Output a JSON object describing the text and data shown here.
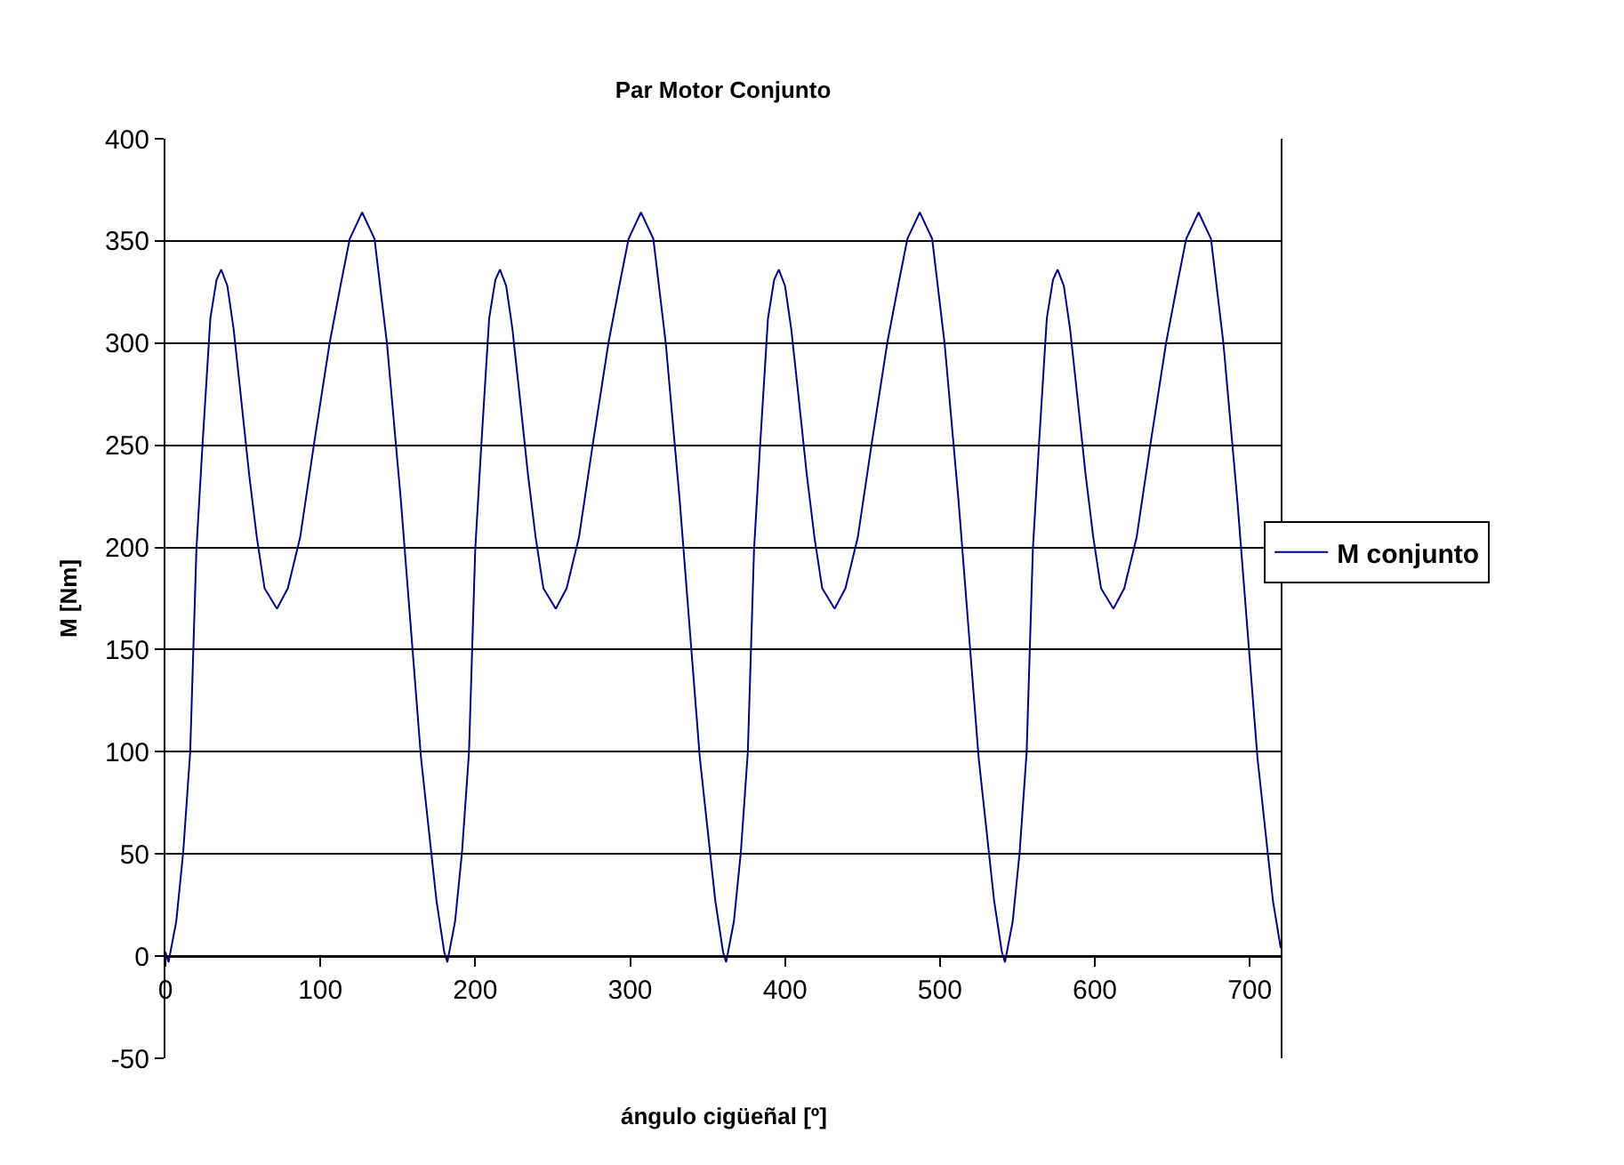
{
  "chart_data": {
    "type": "line",
    "title": "Par Motor Conjunto",
    "xlabel": "ángulo cigüeñal [º]",
    "ylabel": "M [Nm]",
    "x": [
      0,
      2,
      7,
      11.5,
      16,
      20,
      24,
      29,
      33,
      36,
      40,
      44,
      48,
      54,
      59,
      64,
      72,
      79,
      87,
      96,
      106,
      113,
      119,
      127,
      135,
      143,
      152,
      165,
      175,
      180,
      182,
      187,
      191.5,
      196,
      200,
      204,
      209,
      213,
      216,
      220,
      224,
      228,
      234,
      239,
      244,
      252,
      259,
      267,
      276,
      286,
      293,
      299,
      307,
      315,
      323,
      332,
      345,
      355,
      360,
      362,
      367,
      371.5,
      376,
      380,
      384,
      389,
      393,
      396,
      400,
      404,
      408,
      414,
      419,
      424,
      432,
      439,
      447,
      456,
      466,
      473,
      479,
      487,
      495,
      503,
      512,
      525,
      535,
      540,
      542,
      547,
      551.5,
      556,
      560,
      564,
      569,
      573,
      576,
      580,
      584,
      588,
      594,
      599,
      604,
      612,
      619,
      627,
      636,
      646,
      653,
      659,
      667,
      675,
      683,
      692,
      705,
      715,
      720
    ],
    "series": [
      {
        "name": "M conjunto",
        "color": "#000080",
        "values": [
          2,
          -3,
          17,
          51,
          100,
          199,
          251,
          312,
          331,
          336,
          328,
          307,
          279,
          236,
          205,
          180,
          170,
          180,
          205,
          251,
          300,
          328,
          351,
          364,
          351,
          300,
          223,
          97,
          27,
          2,
          -3,
          17,
          51,
          100,
          199,
          251,
          312,
          331,
          336,
          328,
          307,
          279,
          236,
          205,
          180,
          170,
          180,
          205,
          251,
          300,
          328,
          351,
          364,
          351,
          300,
          223,
          97,
          27,
          2,
          -3,
          17,
          51,
          100,
          199,
          251,
          312,
          331,
          336,
          328,
          307,
          279,
          236,
          205,
          180,
          170,
          180,
          205,
          251,
          300,
          328,
          351,
          364,
          351,
          300,
          223,
          97,
          27,
          2,
          -3,
          17,
          51,
          100,
          199,
          251,
          312,
          331,
          336,
          328,
          307,
          279,
          236,
          205,
          180,
          170,
          180,
          205,
          251,
          300,
          328,
          351,
          364,
          351,
          300,
          223,
          97,
          27,
          4
        ]
      }
    ],
    "xlim": [
      0,
      720
    ],
    "xticks": [
      0,
      100,
      200,
      300,
      400,
      500,
      600,
      700
    ],
    "ylim": [
      -50,
      400
    ],
    "yticks": [
      -50,
      0,
      50,
      100,
      150,
      200,
      250,
      300,
      350,
      400
    ],
    "grid": "y",
    "legend": "right",
    "marker": "none",
    "line_style": "solid"
  }
}
